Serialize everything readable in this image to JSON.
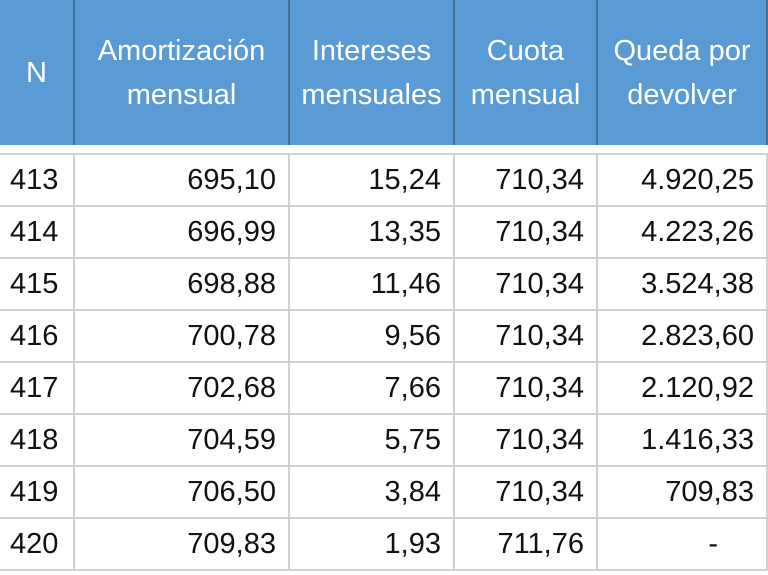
{
  "table": {
    "header": [
      [
        "N"
      ],
      [
        "Amortización",
        "mensual"
      ],
      [
        "Intereses",
        "mensuales"
      ],
      [
        "Cuota",
        "mensual"
      ],
      [
        "Queda por",
        "devolver"
      ]
    ],
    "rows": [
      [
        "413",
        "695,10",
        "15,24",
        "710,34",
        "4.920,25"
      ],
      [
        "414",
        "696,99",
        "13,35",
        "710,34",
        "4.223,26"
      ],
      [
        "415",
        "698,88",
        "11,46",
        "710,34",
        "3.524,38"
      ],
      [
        "416",
        "700,78",
        "9,56",
        "710,34",
        "2.823,60"
      ],
      [
        "417",
        "702,68",
        "7,66",
        "710,34",
        "2.120,92"
      ],
      [
        "418",
        "704,59",
        "5,75",
        "710,34",
        "1.416,33"
      ],
      [
        "419",
        "706,50",
        "3,84",
        "710,34",
        "709,83"
      ],
      [
        "420",
        "709,83",
        "1,93",
        "711,76",
        "-"
      ]
    ]
  }
}
